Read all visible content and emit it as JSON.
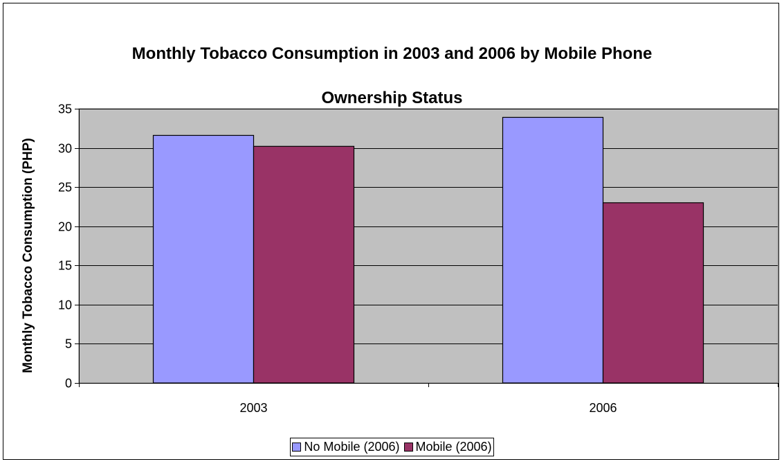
{
  "chart_data": {
    "type": "bar",
    "title": "Monthly Tobacco Consumption in 2003 and 2006 by Mobile Phone Ownership Status",
    "title_lines": [
      "Monthly Tobacco Consumption in 2003 and 2006 by Mobile Phone",
      "Ownership Status"
    ],
    "xlabel": "",
    "ylabel": "Monthly Tobacco Consumption (PHP)",
    "categories": [
      "2003",
      "2006"
    ],
    "ylim": [
      0,
      35
    ],
    "yticks": [
      0,
      5,
      10,
      15,
      20,
      25,
      30,
      35
    ],
    "grid": true,
    "legend_position": "bottom",
    "plot_background": "#C0C0C0",
    "series": [
      {
        "name": "No Mobile (2006)",
        "color": "#9999FF",
        "values": [
          31.6,
          33.9
        ]
      },
      {
        "name": "Mobile (2006)",
        "color": "#993366",
        "values": [
          30.2,
          23.0
        ]
      }
    ]
  }
}
